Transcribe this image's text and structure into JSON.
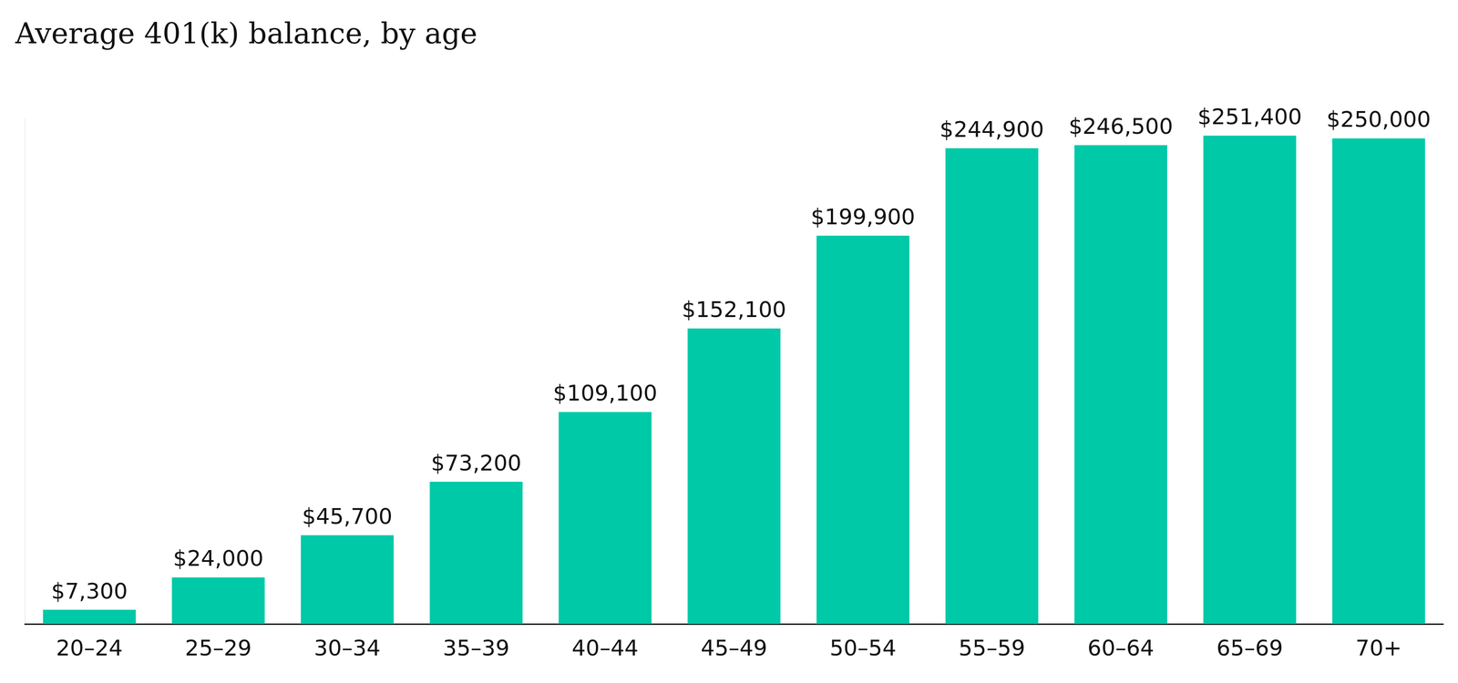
{
  "chart_data": {
    "type": "bar",
    "title": "Average 401(k) balance, by age",
    "categories": [
      "20–24",
      "25–29",
      "30–34",
      "35–39",
      "40–44",
      "45–49",
      "50–54",
      "55–59",
      "60–64",
      "65–69",
      "70+"
    ],
    "values": [
      7300,
      24000,
      45700,
      73200,
      109100,
      152100,
      199900,
      244900,
      246500,
      251400,
      250000
    ],
    "value_labels": [
      "$7,300",
      "$24,000",
      "$45,700",
      "$73,200",
      "$109,100",
      "$152,100",
      "$199,900",
      "$244,900",
      "$246,500",
      "$251,400",
      "$250,000"
    ],
    "color": "#00c9a7",
    "ylim": [
      0,
      260000
    ],
    "grid": false,
    "data_labels": true,
    "tick_labels": "x"
  }
}
